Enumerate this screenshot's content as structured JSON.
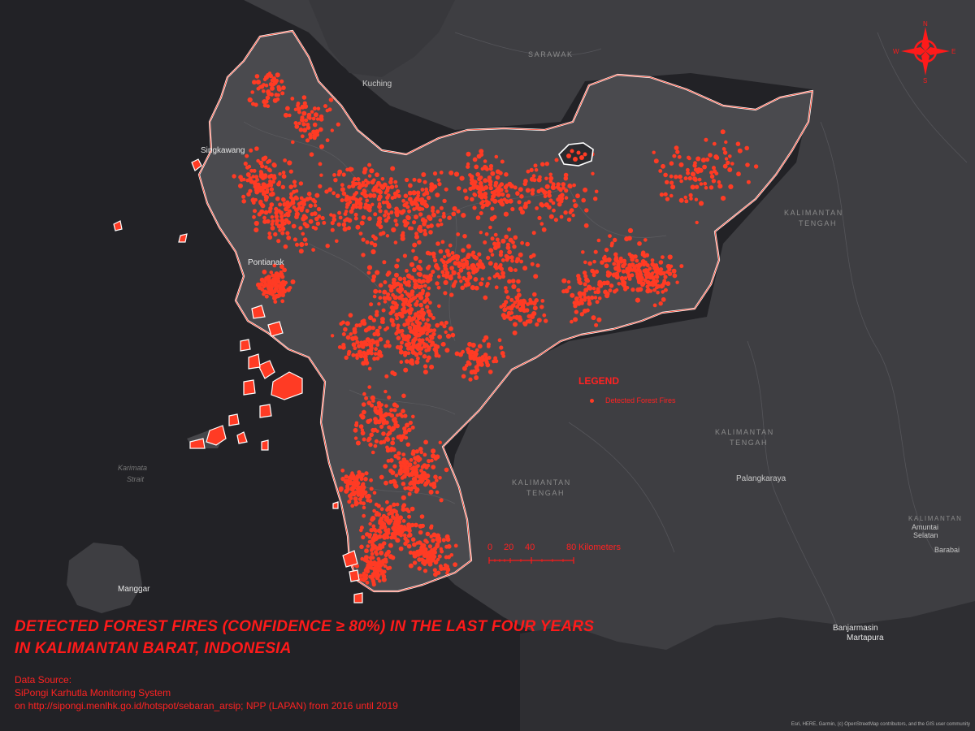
{
  "map": {
    "title_line1": "DETECTED FOREST FIRES (CONFIDENCE ≥ 80%) IN THE LAST FOUR YEARS",
    "title_line2": "IN KALIMANTAN BARAT, INDONESIA",
    "source": {
      "heading": "Data Source:",
      "line1": "SiPongi Karhutla Monitoring System",
      "line2": "on http://sipongi.menlhk.go.id/hotspot/sebaran_arsip; NPP (LAPAN) from 2016 until 2019"
    },
    "legend": {
      "title": "LEGEND",
      "item_label": "Detected Forest Fires",
      "item_color": "#ff3b24"
    },
    "scale_bar": {
      "ticks": [
        "0",
        "20",
        "40",
        "80"
      ],
      "unit": "Kilometers"
    },
    "north_arrow": {
      "n": "N",
      "s": "S",
      "e": "E",
      "w": "W"
    },
    "attribution": "Esri, HERE, Garmin, (c) OpenStreetMap contributors, and the GIS user community",
    "colors": {
      "background": "#222226",
      "land": "#3e3e42",
      "study_area": "#4a4a4e",
      "boundary": "#ffffff",
      "fire": "#ff3b24",
      "accent": "#ff1a1a"
    },
    "place_labels": {
      "sarawak": "SARAWAK",
      "kuching": "Kuching",
      "singkawang": "Singkawang",
      "pontianak": "Pontianak",
      "kalteng_1_line1": "KALIMANTAN",
      "kalteng_1_line2": "TENGAH",
      "kalteng_2_line1": "KALIMANTAN",
      "kalteng_2_line2": "TENGAH",
      "kalteng_3_line1": "KALIMANTAN",
      "kalteng_3_line2": "TENGAH",
      "palangkaraya": "Palangkaraya",
      "karimata_line1": "Karimata",
      "karimata_line2": "Strait",
      "manggar": "Manggar",
      "banjarmasin": "Banjarmasin",
      "martapura": "Martapura",
      "amuntai": "Amuntai",
      "selatan": "Selatan",
      "barabai": "Barabai",
      "kalsel_partial": "KALIMANTAN"
    },
    "fire_point_count": 2600
  }
}
